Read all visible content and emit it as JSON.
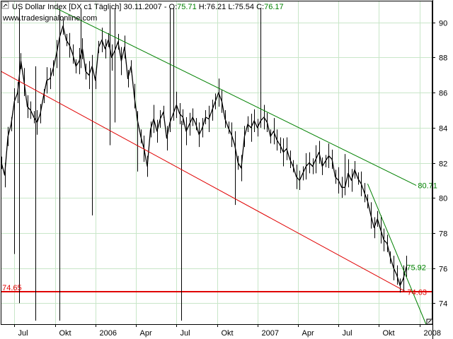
{
  "header": {
    "line1": "US Dollar Index [DX c1 ",
    "line1b": " Täglich] 30.11.2007 - O:",
    "open": "75.71",
    "high_label": " H:76.21 L:75.54 C:",
    "close": "76.17",
    "source": "www.tradesignalonline.com"
  },
  "colors": {
    "price": "#000000",
    "grid": "#c8e6c8",
    "upper_trend": "#008000",
    "lower_trend": "#e00000",
    "steep_trend": "#008000",
    "support": "#e00000",
    "ohlc_green": "#008000"
  },
  "icons": [
    "chart-mode-icon",
    "cursor-square-icon"
  ],
  "chart_data": {
    "type": "line",
    "title": "US Dollar Index [DX c1 | Täglich]",
    "yticks": [
      74,
      76,
      78,
      80,
      82,
      84,
      86,
      88,
      90
    ],
    "ylim": [
      72.8,
      91.2
    ],
    "xlim": [
      2005.42,
      2008.08
    ],
    "xticks": [
      {
        "label": "Jul",
        "x": 2005.5
      },
      {
        "label": "Okt",
        "x": 2005.75
      },
      {
        "label": "2006",
        "x": 2006.0
      },
      {
        "label": "Apr",
        "x": 2006.25
      },
      {
        "label": "Jul",
        "x": 2006.5
      },
      {
        "label": "Okt",
        "x": 2006.75
      },
      {
        "label": "2007",
        "x": 2007.0
      },
      {
        "label": "Apr",
        "x": 2007.25
      },
      {
        "label": "Jul",
        "x": 2007.5
      },
      {
        "label": "Okt",
        "x": 2007.75
      },
      {
        "label": "2008",
        "x": 2008.0
      }
    ],
    "grid": true,
    "series": [
      {
        "values": [
          [
            2005.42,
            82.0
          ],
          [
            2005.44,
            81.3
          ],
          [
            2005.46,
            83.5
          ],
          [
            2005.48,
            84.2
          ],
          [
            2005.5,
            85.5
          ],
          [
            2005.52,
            86.0
          ],
          [
            2005.54,
            87.8
          ],
          [
            2005.56,
            86.6
          ],
          [
            2005.58,
            85.2
          ],
          [
            2005.6,
            85.0
          ],
          [
            2005.62,
            84.6
          ],
          [
            2005.64,
            84.3
          ],
          [
            2005.66,
            84.8
          ],
          [
            2005.68,
            85.8
          ],
          [
            2005.7,
            86.7
          ],
          [
            2005.72,
            86.8
          ],
          [
            2005.74,
            87.4
          ],
          [
            2005.76,
            88.2
          ],
          [
            2005.78,
            89.2
          ],
          [
            2005.8,
            89.8
          ],
          [
            2005.82,
            89.0
          ],
          [
            2005.84,
            88.7
          ],
          [
            2005.86,
            88.2
          ],
          [
            2005.88,
            87.5
          ],
          [
            2005.9,
            87.8
          ],
          [
            2005.92,
            88.5
          ],
          [
            2005.94,
            87.2
          ],
          [
            2005.96,
            87.0
          ],
          [
            2005.98,
            87.5
          ],
          [
            2006.0,
            86.7
          ],
          [
            2006.02,
            88.6
          ],
          [
            2006.04,
            89.0
          ],
          [
            2006.06,
            88.5
          ],
          [
            2006.08,
            89.0
          ],
          [
            2006.1,
            88.0
          ],
          [
            2006.12,
            88.4
          ],
          [
            2006.14,
            88.9
          ],
          [
            2006.16,
            87.8
          ],
          [
            2006.18,
            88.6
          ],
          [
            2006.2,
            86.8
          ],
          [
            2006.22,
            87.5
          ],
          [
            2006.24,
            85.8
          ],
          [
            2006.26,
            84.4
          ],
          [
            2006.28,
            83.5
          ],
          [
            2006.3,
            82.8
          ],
          [
            2006.32,
            81.8
          ],
          [
            2006.34,
            83.9
          ],
          [
            2006.36,
            84.5
          ],
          [
            2006.38,
            83.8
          ],
          [
            2006.4,
            84.5
          ],
          [
            2006.42,
            84.9
          ],
          [
            2006.44,
            83.4
          ],
          [
            2006.46,
            84.3
          ],
          [
            2006.48,
            84.8
          ],
          [
            2006.5,
            85.3
          ],
          [
            2006.52,
            84.8
          ],
          [
            2006.54,
            84.6
          ],
          [
            2006.56,
            83.8
          ],
          [
            2006.58,
            84.2
          ],
          [
            2006.6,
            84.6
          ],
          [
            2006.62,
            84.2
          ],
          [
            2006.64,
            83.6
          ],
          [
            2006.66,
            84.0
          ],
          [
            2006.68,
            84.6
          ],
          [
            2006.7,
            84.5
          ],
          [
            2006.72,
            85.0
          ],
          [
            2006.74,
            85.5
          ],
          [
            2006.76,
            86.0
          ],
          [
            2006.78,
            85.5
          ],
          [
            2006.8,
            84.5
          ],
          [
            2006.82,
            84.0
          ],
          [
            2006.84,
            83.6
          ],
          [
            2006.86,
            83.0
          ],
          [
            2006.88,
            82.0
          ],
          [
            2006.9,
            81.7
          ],
          [
            2006.92,
            83.5
          ],
          [
            2006.94,
            84.2
          ],
          [
            2006.96,
            84.0
          ],
          [
            2006.98,
            84.4
          ],
          [
            2007.0,
            84.0
          ],
          [
            2007.02,
            84.4
          ],
          [
            2007.04,
            84.6
          ],
          [
            2007.06,
            84.3
          ],
          [
            2007.08,
            83.5
          ],
          [
            2007.1,
            83.8
          ],
          [
            2007.12,
            83.3
          ],
          [
            2007.14,
            83.0
          ],
          [
            2007.16,
            82.6
          ],
          [
            2007.18,
            82.8
          ],
          [
            2007.2,
            82.2
          ],
          [
            2007.22,
            81.8
          ],
          [
            2007.24,
            81.2
          ],
          [
            2007.26,
            81.0
          ],
          [
            2007.28,
            81.4
          ],
          [
            2007.3,
            81.8
          ],
          [
            2007.32,
            82.0
          ],
          [
            2007.34,
            81.8
          ],
          [
            2007.36,
            82.2
          ],
          [
            2007.38,
            82.6
          ],
          [
            2007.4,
            81.8
          ],
          [
            2007.42,
            82.1
          ],
          [
            2007.44,
            82.4
          ],
          [
            2007.46,
            82.2
          ],
          [
            2007.48,
            81.2
          ],
          [
            2007.5,
            81.0
          ],
          [
            2007.52,
            80.6
          ],
          [
            2007.54,
            80.6
          ],
          [
            2007.56,
            81.4
          ],
          [
            2007.58,
            81.0
          ],
          [
            2007.6,
            81.6
          ],
          [
            2007.62,
            81.1
          ],
          [
            2007.64,
            80.8
          ],
          [
            2007.66,
            80.3
          ],
          [
            2007.68,
            79.8
          ],
          [
            2007.7,
            79.0
          ],
          [
            2007.72,
            78.3
          ],
          [
            2007.74,
            78.8
          ],
          [
            2007.76,
            78.2
          ],
          [
            2007.78,
            77.6
          ],
          [
            2007.8,
            77.4
          ],
          [
            2007.82,
            76.6
          ],
          [
            2007.84,
            76.0
          ],
          [
            2007.86,
            75.6
          ],
          [
            2007.88,
            75.0
          ],
          [
            2007.9,
            75.4
          ],
          [
            2007.92,
            76.1
          ]
        ]
      }
    ],
    "spikes": [
      [
        2005.5,
        76.8,
        86.0
      ],
      [
        2005.53,
        74.0,
        90.8
      ],
      [
        2005.63,
        73.0,
        87.5
      ],
      [
        2005.78,
        73.0,
        90.8
      ],
      [
        2005.91,
        87.4,
        90.8
      ],
      [
        2005.98,
        79.0,
        88.0
      ],
      [
        2006.09,
        83.0,
        90.8
      ],
      [
        2006.12,
        84.3,
        90.8
      ],
      [
        2006.26,
        81.5,
        84.8
      ],
      [
        2006.46,
        84.1,
        90.8
      ],
      [
        2006.48,
        84.6,
        90.8
      ],
      [
        2006.53,
        73.0,
        84.4
      ],
      [
        2006.86,
        79.6,
        83.8
      ],
      [
        2007.02,
        84.0,
        90.8
      ],
      [
        2007.54,
        80.5,
        82.5
      ]
    ],
    "lines": [
      {
        "name": "upper-trend",
        "color": "#008000",
        "from": [
          2005.76,
          90.8
        ],
        "to": [
          2007.98,
          80.71
        ],
        "label": "80.71"
      },
      {
        "name": "lower-trend",
        "color": "#e00000",
        "from": [
          2005.42,
          87.2
        ],
        "to": [
          2007.92,
          74.63
        ],
        "label": "74.63"
      },
      {
        "name": "steep-trend",
        "color": "#008000",
        "from": [
          2007.68,
          80.8
        ],
        "to": [
          2008.04,
          72.8
        ],
        "label": "75.92"
      },
      {
        "name": "support",
        "color": "#e00000",
        "from": [
          2005.42,
          74.65
        ],
        "to": [
          2008.08,
          74.65
        ],
        "label": "74.65"
      }
    ],
    "level_labels": [
      {
        "name": "upper-trend-value",
        "text": "80.71",
        "color": "#008000",
        "x": 2007.99,
        "y": 80.71
      },
      {
        "name": "steep-trend-value",
        "text": "75.92",
        "color": "#008000",
        "x": 2007.92,
        "y": 76.05
      },
      {
        "name": "lower-trend-value",
        "text": "74.63",
        "color": "#e00000",
        "x": 2007.925,
        "y": 74.63
      },
      {
        "name": "support-value",
        "text": "74.65",
        "color": "#e00000",
        "x": 2005.425,
        "y": 74.9
      }
    ]
  }
}
